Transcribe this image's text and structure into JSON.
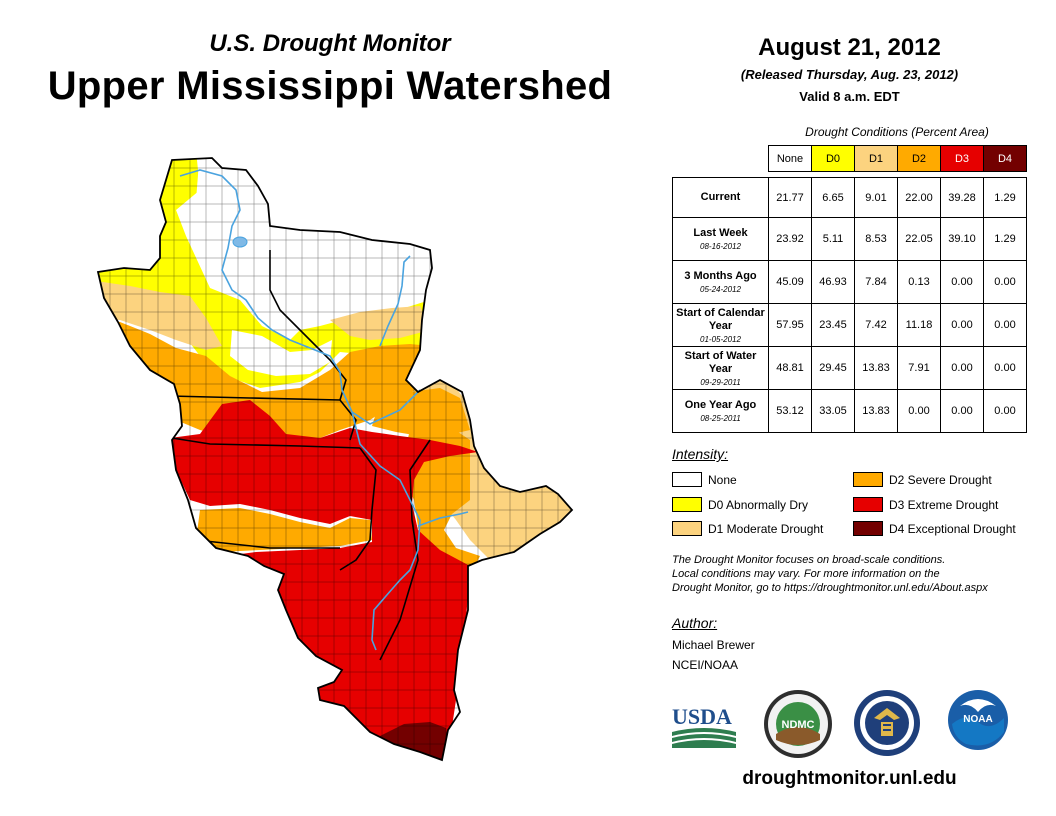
{
  "header": {
    "subtitle": "U.S. Drought Monitor",
    "title": "Upper Mississippi Watershed"
  },
  "info": {
    "date": "August 21, 2012",
    "released": "(Released Thursday, Aug. 23, 2012)",
    "valid": "Valid 8 a.m. EDT"
  },
  "table": {
    "caption": "Drought Conditions (Percent Area)",
    "columns": [
      {
        "label": "None",
        "color": "#ffffff"
      },
      {
        "label": "D0",
        "color": "#ffff00"
      },
      {
        "label": "D1",
        "color": "#fcd37f"
      },
      {
        "label": "D2",
        "color": "#ffaa00"
      },
      {
        "label": "D3",
        "color": "#e60000"
      },
      {
        "label": "D4",
        "color": "#730000"
      }
    ],
    "rows": [
      {
        "label": "Current",
        "date": "",
        "values": [
          "21.77",
          "6.65",
          "9.01",
          "22.00",
          "39.28",
          "1.29"
        ]
      },
      {
        "label": "Last Week",
        "date": "08-16-2012",
        "values": [
          "23.92",
          "5.11",
          "8.53",
          "22.05",
          "39.10",
          "1.29"
        ]
      },
      {
        "label": "3 Months Ago",
        "date": "05-24-2012",
        "values": [
          "45.09",
          "46.93",
          "7.84",
          "0.13",
          "0.00",
          "0.00"
        ]
      },
      {
        "label": "Start of Calendar Year",
        "date": "01-05-2012",
        "values": [
          "57.95",
          "23.45",
          "7.42",
          "11.18",
          "0.00",
          "0.00"
        ]
      },
      {
        "label": "Start of Water Year",
        "date": "09-29-2011",
        "values": [
          "48.81",
          "29.45",
          "13.83",
          "7.91",
          "0.00",
          "0.00"
        ]
      },
      {
        "label": "One Year Ago",
        "date": "08-25-2011",
        "values": [
          "53.12",
          "33.05",
          "13.83",
          "0.00",
          "0.00",
          "0.00"
        ]
      }
    ]
  },
  "legend": {
    "title": "Intensity:",
    "items": [
      {
        "label": "None",
        "color": "#ffffff"
      },
      {
        "label": "D0 Abnormally Dry",
        "color": "#ffff00"
      },
      {
        "label": "D1 Moderate Drought",
        "color": "#fcd37f"
      },
      {
        "label": "D2 Severe Drought",
        "color": "#ffaa00"
      },
      {
        "label": "D3 Extreme Drought",
        "color": "#e60000"
      },
      {
        "label": "D4 Exceptional Drought",
        "color": "#730000"
      }
    ]
  },
  "note": {
    "line1": "The Drought Monitor focuses on broad-scale conditions.",
    "line2": "Local conditions may vary. For more information on the",
    "line3": "Drought Monitor, go to https://droughtmonitor.unl.edu/About.aspx"
  },
  "author": {
    "title": "Author:",
    "name": "Michael Brewer",
    "org": "NCEI/NOAA"
  },
  "logos": {
    "usda": "USDA",
    "ndmc": "NDMC",
    "noaa": "NOAA"
  },
  "footer": {
    "url": "droughtmonitor.unl.edu"
  },
  "colors": {
    "none": "#ffffff",
    "d0": "#ffff00",
    "d1": "#fcd37f",
    "d2": "#ffaa00",
    "d3": "#e60000",
    "d4": "#730000",
    "river": "#4aa3df",
    "usda_blue": "#1f4e8c",
    "usda_green": "#2e7d4f"
  }
}
